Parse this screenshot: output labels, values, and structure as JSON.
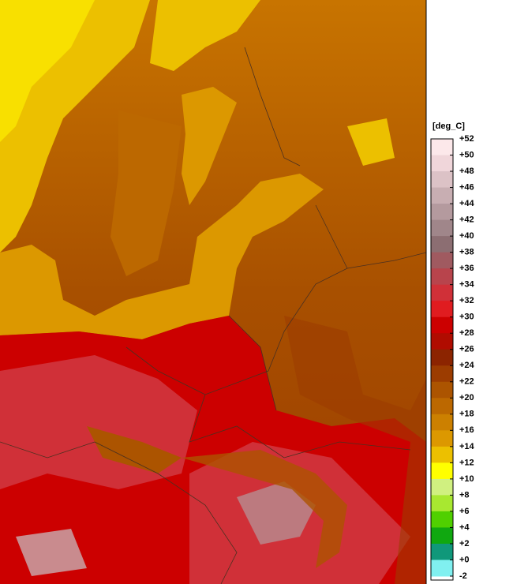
{
  "legend": {
    "title": "[deg_C]",
    "labels": [
      "+52",
      "+50",
      "+48",
      "+46",
      "+44",
      "+42",
      "+40",
      "+38",
      "+36",
      "+34",
      "+32",
      "+30",
      "+28",
      "+26",
      "+24",
      "+22",
      "+20",
      "+18",
      "+16",
      "+14",
      "+12",
      "+10",
      "+8",
      "+6",
      "+4",
      "+2",
      "+0",
      "-2"
    ],
    "colors": [
      "#fce8ea",
      "#f0d6da",
      "#dcc2c6",
      "#c8aeb2",
      "#b49a9e",
      "#a0868a",
      "#8c6e72",
      "#a05a60",
      "#b8444c",
      "#d03038",
      "#e01c20",
      "#cc0000",
      "#b00c00",
      "#8c2400",
      "#9c3c00",
      "#ac5400",
      "#bc6800",
      "#cc8000",
      "#dc9800",
      "#ecc000",
      "#ffff00",
      "#d0f080",
      "#a8e830",
      "#50d000",
      "#10a810",
      "#10987a",
      "#80f0f0"
    ]
  }
}
